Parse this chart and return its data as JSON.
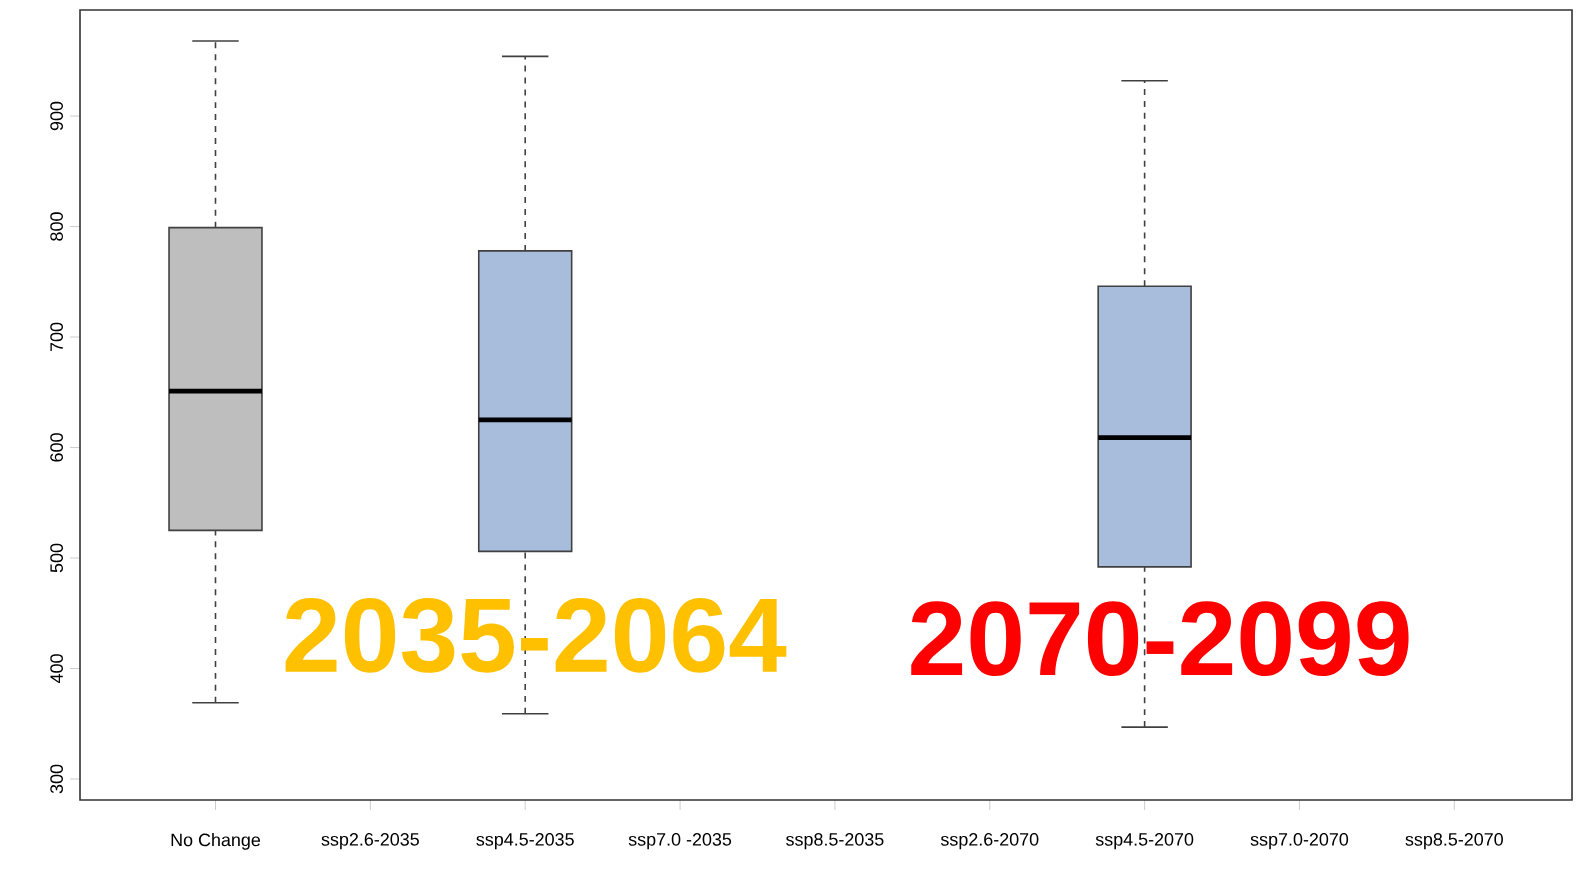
{
  "chart_data": {
    "type": "box",
    "categories": [
      "No Change",
      "ssp2.6-2035",
      "ssp4.5-2035",
      "ssp7.0 -2035",
      "ssp8.5-2035",
      "ssp2.6-2070",
      "ssp4.5-2070",
      "ssp7.0-2070",
      "ssp8.5-2070"
    ],
    "boxes": [
      {
        "low": 369,
        "q1": 525,
        "median": 651,
        "q3": 799,
        "high": 968
      },
      null,
      {
        "low": 359,
        "q1": 506,
        "median": 625,
        "q3": 778,
        "high": 954
      },
      null,
      null,
      null,
      {
        "low": 347,
        "q1": 492,
        "median": 609,
        "q3": 746,
        "high": 932
      },
      null,
      null
    ],
    "colors": [
      "#bebebe",
      null,
      "#a8bddb",
      null,
      null,
      null,
      "#a8bddb",
      null,
      null
    ],
    "ylim": [
      281,
      996
    ],
    "yticks": [
      300,
      400,
      500,
      600,
      700,
      800,
      900
    ],
    "annotations": [
      "2035-2064",
      "2070-2099"
    ],
    "grid": false
  }
}
